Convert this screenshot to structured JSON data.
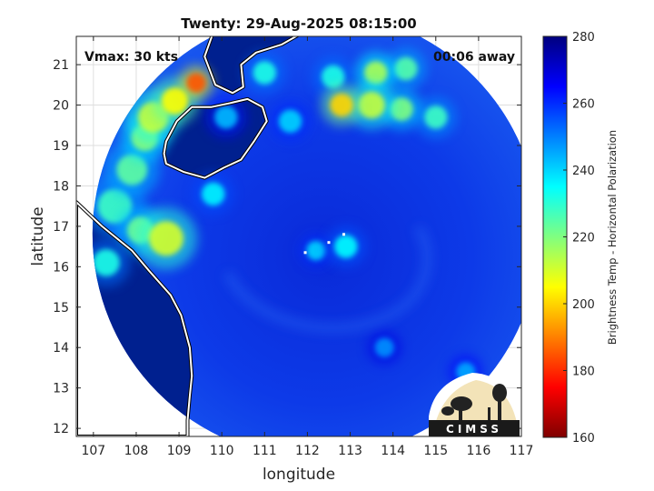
{
  "figure": {
    "title": "Twenty: 29-Aug-2025 08:15:00",
    "vmax_label": "Vmax: 30 kts",
    "time_away_label": "00:06 away",
    "xlabel": "longitude",
    "ylabel": "latitude",
    "logo_text": "CIMSS"
  },
  "map_data": {
    "lon_range": [
      106.6,
      117
    ],
    "lat_range": [
      11.8,
      21.7
    ],
    "x_ticks": [
      "107",
      "108",
      "109",
      "110",
      "111",
      "112",
      "113",
      "114",
      "115",
      "116",
      "117"
    ],
    "y_ticks": [
      "12",
      "13",
      "14",
      "15",
      "16",
      "17",
      "18",
      "19",
      "20",
      "21"
    ],
    "swath_center": {
      "lon": 112.2,
      "lat": 16.8
    },
    "storm_center": {
      "lon": 112.5,
      "lat": 16.6
    },
    "grid": true,
    "hot_spots": [
      {
        "lon": 108.9,
        "lat": 20.1,
        "temp": 205,
        "r": 0.35
      },
      {
        "lon": 109.4,
        "lat": 20.55,
        "temp": 185,
        "r": 0.25
      },
      {
        "lon": 108.4,
        "lat": 19.7,
        "temp": 212,
        "r": 0.4
      },
      {
        "lon": 108.2,
        "lat": 19.2,
        "temp": 218,
        "r": 0.35
      },
      {
        "lon": 107.9,
        "lat": 18.4,
        "temp": 224,
        "r": 0.4
      },
      {
        "lon": 107.5,
        "lat": 17.5,
        "temp": 228,
        "r": 0.45
      },
      {
        "lon": 108.7,
        "lat": 16.7,
        "temp": 210,
        "r": 0.45
      },
      {
        "lon": 108.1,
        "lat": 16.9,
        "temp": 222,
        "r": 0.35
      },
      {
        "lon": 107.3,
        "lat": 16.1,
        "temp": 232,
        "r": 0.35
      },
      {
        "lon": 109.8,
        "lat": 17.8,
        "temp": 236,
        "r": 0.3
      },
      {
        "lon": 111.0,
        "lat": 20.8,
        "temp": 232,
        "r": 0.3
      },
      {
        "lon": 112.6,
        "lat": 20.7,
        "temp": 232,
        "r": 0.3
      },
      {
        "lon": 113.6,
        "lat": 20.8,
        "temp": 215,
        "r": 0.3
      },
      {
        "lon": 114.3,
        "lat": 20.9,
        "temp": 225,
        "r": 0.3
      },
      {
        "lon": 112.8,
        "lat": 20.0,
        "temp": 200,
        "r": 0.3
      },
      {
        "lon": 113.5,
        "lat": 20.0,
        "temp": 212,
        "r": 0.35
      },
      {
        "lon": 114.2,
        "lat": 19.9,
        "temp": 220,
        "r": 0.3
      },
      {
        "lon": 115.0,
        "lat": 19.7,
        "temp": 228,
        "r": 0.3
      },
      {
        "lon": 111.6,
        "lat": 19.6,
        "temp": 240,
        "r": 0.3
      },
      {
        "lon": 112.9,
        "lat": 16.5,
        "temp": 235,
        "r": 0.3
      },
      {
        "lon": 112.2,
        "lat": 16.4,
        "temp": 240,
        "r": 0.25
      },
      {
        "lon": 110.1,
        "lat": 19.7,
        "temp": 243,
        "r": 0.3
      },
      {
        "lon": 113.8,
        "lat": 14.0,
        "temp": 248,
        "r": 0.25
      },
      {
        "lon": 115.7,
        "lat": 13.4,
        "temp": 245,
        "r": 0.25
      }
    ],
    "land": [
      {
        "name": "hainan",
        "points": [
          [
            108.7,
            19.1
          ],
          [
            108.95,
            19.6
          ],
          [
            109.3,
            19.95
          ],
          [
            109.75,
            19.95
          ],
          [
            110.2,
            20.05
          ],
          [
            110.6,
            20.15
          ],
          [
            110.95,
            19.95
          ],
          [
            111.05,
            19.6
          ],
          [
            110.75,
            19.1
          ],
          [
            110.45,
            18.65
          ],
          [
            110.05,
            18.45
          ],
          [
            109.6,
            18.2
          ],
          [
            109.1,
            18.35
          ],
          [
            108.7,
            18.55
          ],
          [
            108.65,
            18.8
          ]
        ]
      },
      {
        "name": "leizhou",
        "points": [
          [
            109.8,
            21.8
          ],
          [
            109.6,
            21.2
          ],
          [
            109.85,
            20.5
          ],
          [
            110.25,
            20.3
          ],
          [
            110.5,
            20.45
          ],
          [
            110.45,
            21.0
          ],
          [
            110.8,
            21.3
          ],
          [
            111.4,
            21.5
          ],
          [
            111.9,
            21.8
          ]
        ]
      },
      {
        "name": "vietnam",
        "points": [
          [
            106.6,
            17.6
          ],
          [
            107.2,
            17.0
          ],
          [
            107.9,
            16.4
          ],
          [
            108.3,
            15.9
          ],
          [
            108.8,
            15.3
          ],
          [
            109.05,
            14.8
          ],
          [
            109.25,
            14.0
          ],
          [
            109.3,
            13.3
          ],
          [
            109.25,
            12.8
          ],
          [
            109.2,
            12.2
          ],
          [
            109.2,
            11.8
          ],
          [
            106.6,
            11.8
          ]
        ]
      }
    ]
  },
  "colorbar": {
    "label": "Brightness Temp - Horizontal Polarization",
    "range": [
      160,
      280
    ],
    "ticks": [
      "160",
      "180",
      "200",
      "220",
      "240",
      "260",
      "280"
    ],
    "colormap": [
      "#7f0000",
      "#ff0000",
      "#ff8000",
      "#ffff00",
      "#80ff80",
      "#00ffff",
      "#0080ff",
      "#0000ff",
      "#00007f"
    ]
  }
}
